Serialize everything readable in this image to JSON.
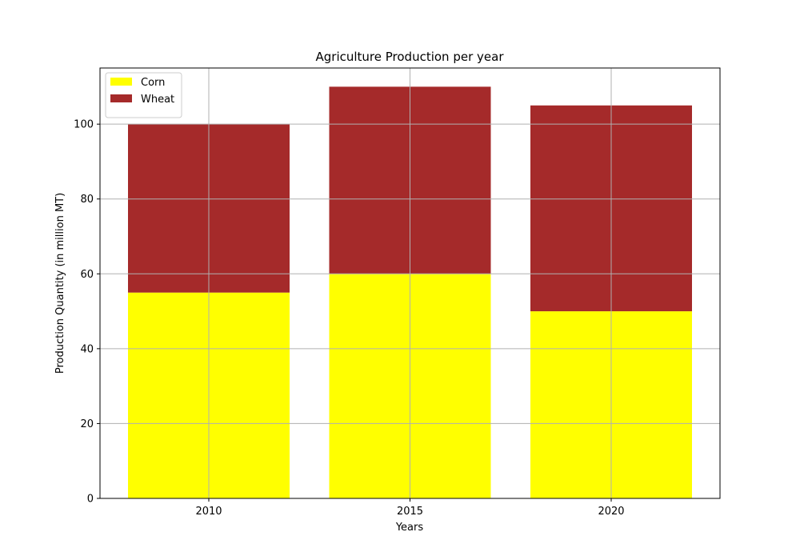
{
  "chart_data": {
    "type": "bar",
    "stacked": true,
    "title": "Agriculture Production per year",
    "xlabel": "Years",
    "ylabel": "Production Quantity (in million MT)",
    "categories": [
      "2010",
      "2015",
      "2020"
    ],
    "series": [
      {
        "name": "Corn",
        "values": [
          55,
          60,
          50
        ],
        "color": "#ffff00"
      },
      {
        "name": "Wheat",
        "values": [
          45,
          50,
          55
        ],
        "color": "#a52a2a"
      }
    ],
    "ylim": [
      0,
      115
    ],
    "yticks": [
      0,
      20,
      40,
      60,
      80,
      100
    ],
    "grid": true,
    "legend_position": "upper-left"
  }
}
